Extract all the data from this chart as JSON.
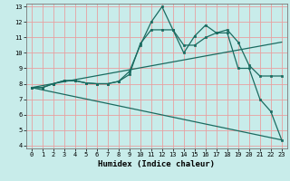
{
  "title": "",
  "xlabel": "Humidex (Indice chaleur)",
  "bg_color": "#c8ecea",
  "grid_color": "#e8a0a0",
  "line_color": "#1a6b60",
  "xlim": [
    -0.5,
    23.5
  ],
  "ylim": [
    3.8,
    13.2
  ],
  "xticks": [
    0,
    1,
    2,
    3,
    4,
    5,
    6,
    7,
    8,
    9,
    10,
    11,
    12,
    13,
    14,
    15,
    16,
    17,
    18,
    19,
    20,
    21,
    22,
    23
  ],
  "yticks": [
    4,
    5,
    6,
    7,
    8,
    9,
    10,
    11,
    12,
    13
  ],
  "line1_x": [
    0,
    1,
    2,
    3,
    4,
    5,
    6,
    7,
    8,
    9,
    10,
    11,
    12,
    13,
    14,
    15,
    16,
    17,
    18,
    19,
    20,
    21,
    22,
    23
  ],
  "line1_y": [
    7.75,
    7.75,
    8.0,
    8.2,
    8.2,
    8.05,
    8.0,
    8.0,
    8.15,
    8.8,
    10.5,
    12.0,
    13.0,
    11.5,
    10.0,
    11.1,
    11.8,
    11.3,
    11.3,
    9.0,
    9.0,
    7.0,
    6.2,
    4.35
  ],
  "line2_x": [
    0,
    1,
    2,
    3,
    4,
    5,
    6,
    7,
    8,
    9,
    10,
    11,
    12,
    13,
    14,
    15,
    16,
    17,
    18,
    19,
    20,
    21,
    22,
    23
  ],
  "line2_y": [
    7.75,
    7.75,
    8.0,
    8.2,
    8.2,
    8.05,
    8.0,
    8.0,
    8.15,
    8.6,
    10.6,
    11.5,
    11.5,
    11.5,
    10.5,
    10.5,
    11.0,
    11.3,
    11.5,
    10.7,
    9.2,
    8.5,
    8.5,
    8.5
  ],
  "line3_x": [
    0,
    23
  ],
  "line3_y": [
    7.75,
    10.7
  ],
  "line4_x": [
    0,
    23
  ],
  "line4_y": [
    7.75,
    4.35
  ]
}
